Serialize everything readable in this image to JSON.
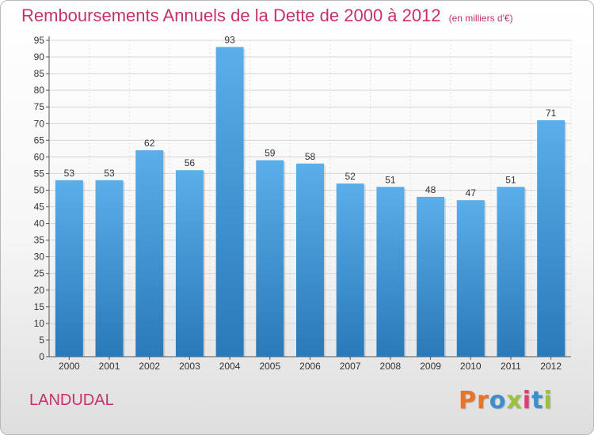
{
  "header": {
    "title": "Remboursements Annuels de la Dette de 2000 à 2012",
    "unit": "(en milliers d'€)"
  },
  "footer": {
    "place": "LANDUDAL",
    "logo": "Proxiti",
    "logo_colors": [
      "#e8742a",
      "#e8742a",
      "#3a8fd0",
      "#9ac23c",
      "#e23b7a",
      "#3a8fd0",
      "#9ac23c"
    ]
  },
  "chart_data": {
    "type": "bar",
    "categories": [
      "2000",
      "2001",
      "2002",
      "2003",
      "2004",
      "2005",
      "2006",
      "2007",
      "2008",
      "2009",
      "2010",
      "2011",
      "2012"
    ],
    "values": [
      53,
      53,
      62,
      56,
      93,
      59,
      58,
      52,
      51,
      48,
      47,
      51,
      71
    ],
    "ylim": [
      0,
      95
    ],
    "ytick_step": 5,
    "grid": true,
    "bar_color_top": "#5aaee9",
    "bar_color_bottom": "#2a79b9"
  }
}
